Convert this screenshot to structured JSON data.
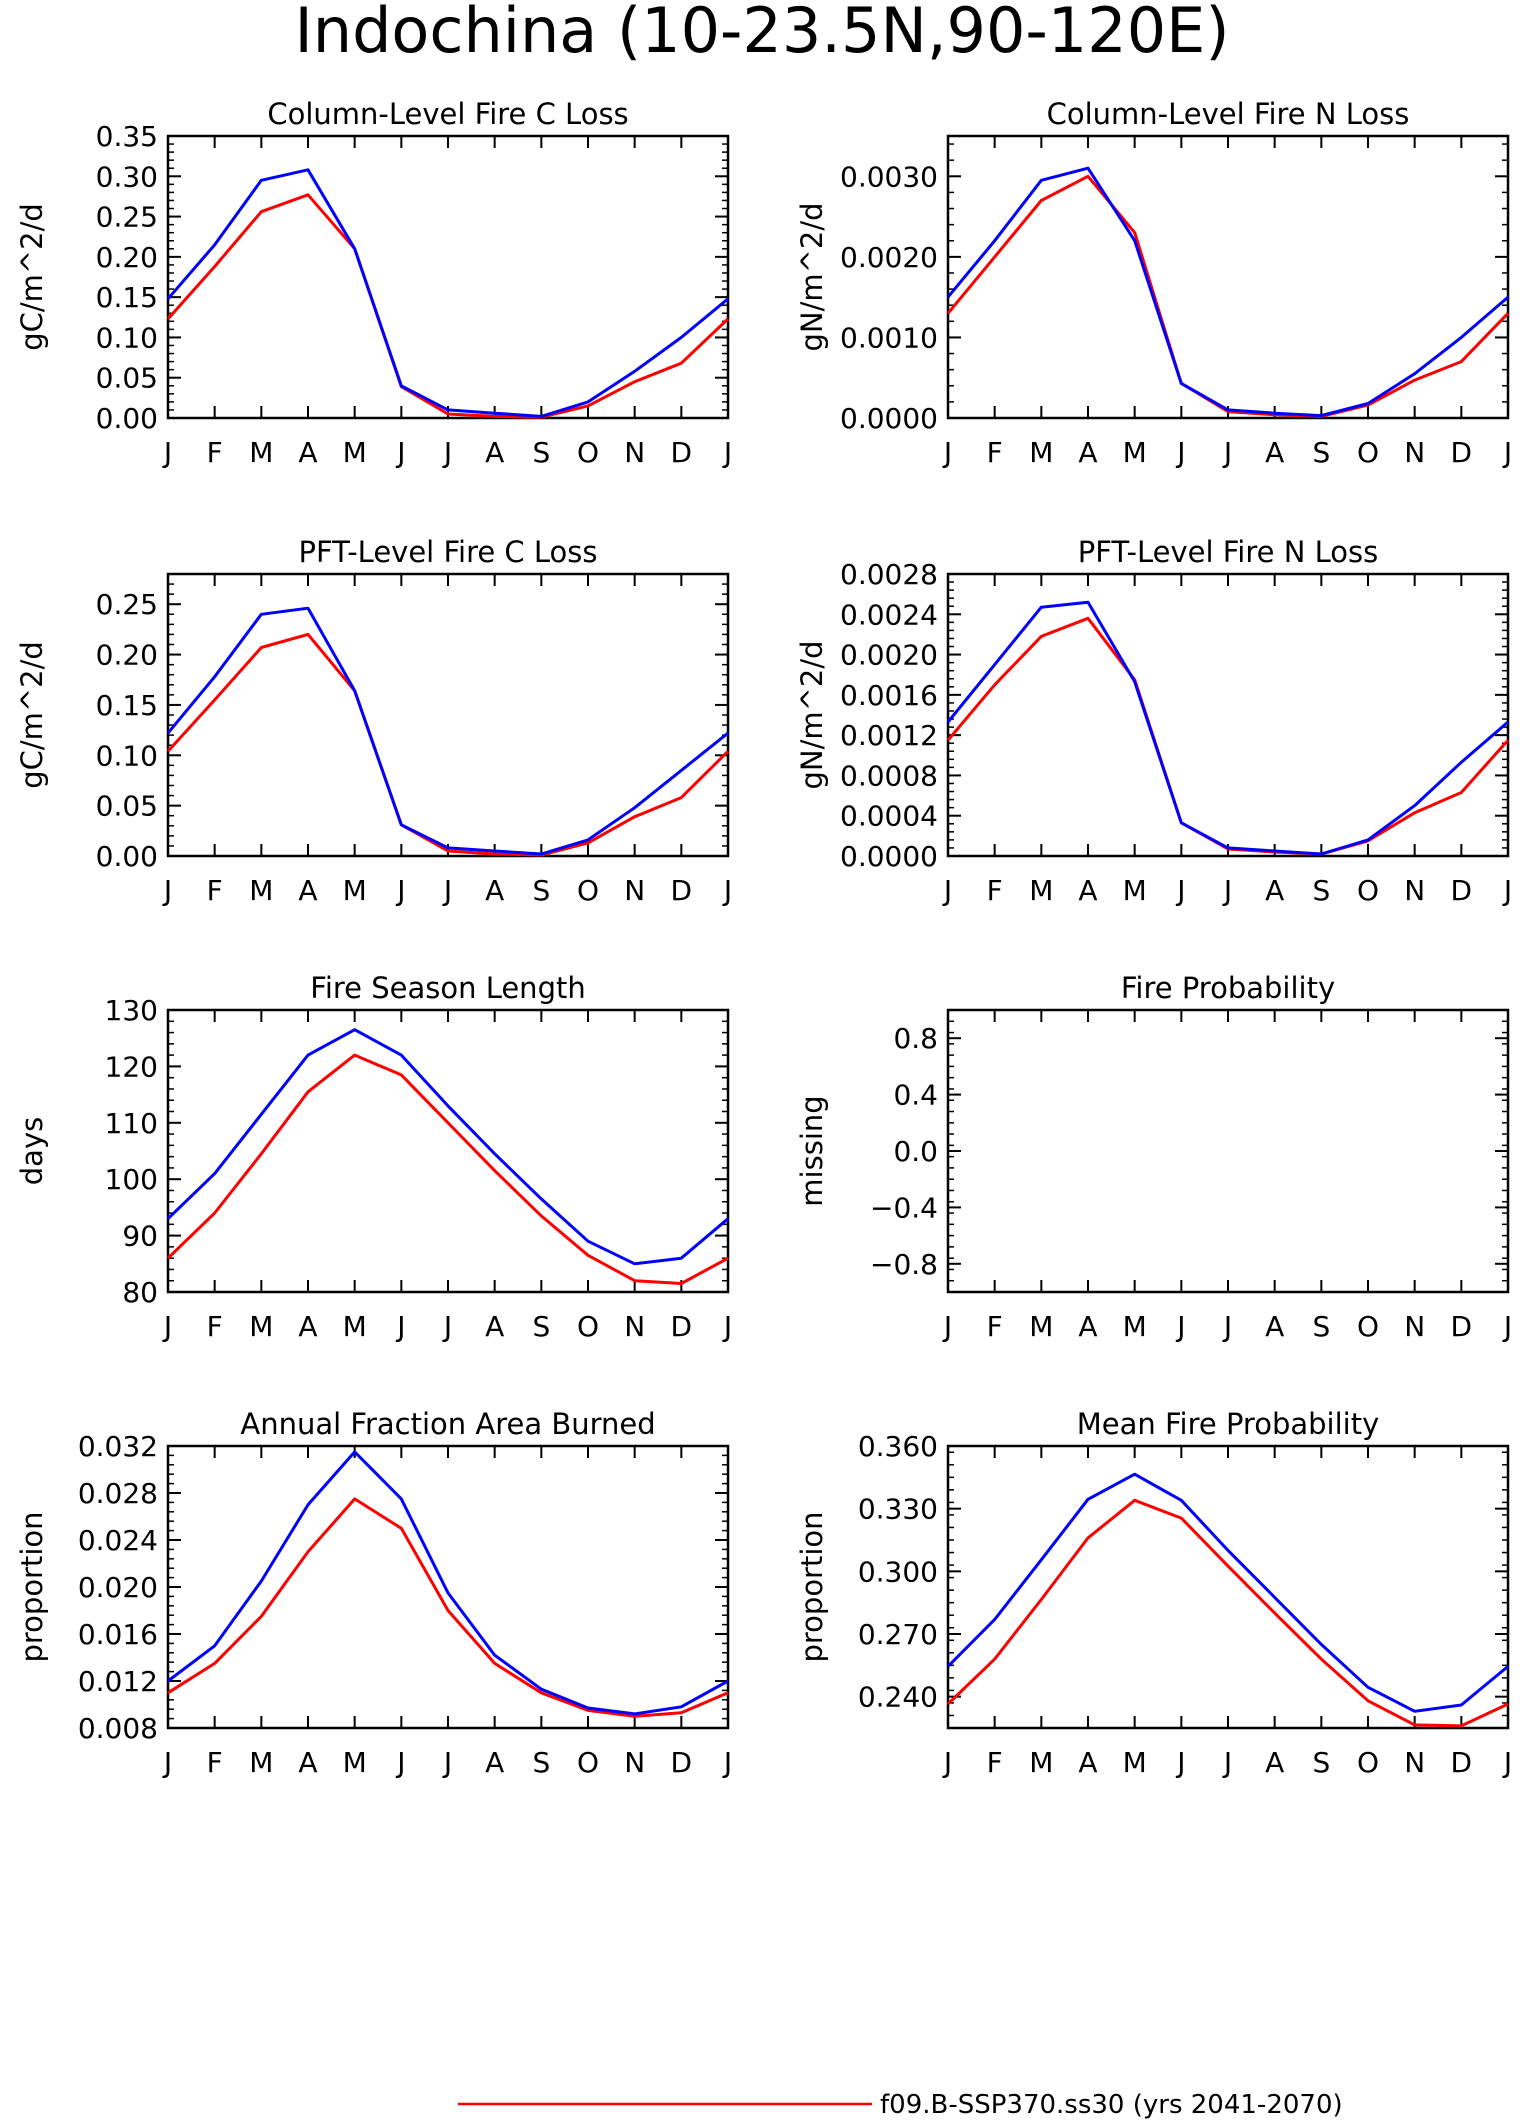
{
  "title": "Indochina (10-23.5N,90-120E)",
  "month_labels": [
    "J",
    "F",
    "M",
    "A",
    "M",
    "J",
    "J",
    "A",
    "S",
    "O",
    "N",
    "D",
    "J"
  ],
  "colors": {
    "series_1": "#ff0000",
    "series_2": "#0000ff",
    "axes": "#000000"
  },
  "legend": {
    "series_1": "f09.B-SSP370.ss30 (yrs 2041-2070)"
  },
  "chart_data": [
    {
      "type": "line",
      "title": "Column-Level Fire C Loss",
      "ylabel": "gC/m^2/d",
      "ylim": [
        0,
        0.35
      ],
      "yticks": [
        "0.00",
        "0.05",
        "0.10",
        "0.15",
        "0.20",
        "0.25",
        "0.30",
        "0.35"
      ],
      "series": [
        {
          "values": [
            0.123,
            0.188,
            0.256,
            0.277,
            0.21,
            0.039,
            0.005,
            0.002,
            0.001,
            0.015,
            0.045,
            0.068,
            0.123
          ]
        },
        {
          "values": [
            0.148,
            0.215,
            0.295,
            0.308,
            0.21,
            0.04,
            0.01,
            0.006,
            0.002,
            0.02,
            0.058,
            0.1,
            0.148
          ]
        }
      ]
    },
    {
      "type": "line",
      "title": "Column-Level Fire N Loss",
      "ylabel": "gN/m^2/d",
      "ylim": [
        0,
        0.0035
      ],
      "yticks": [
        "0.0000",
        "0.0010",
        "0.0020",
        "0.0030"
      ],
      "series": [
        {
          "values": [
            0.0013,
            0.002,
            0.0027,
            0.003,
            0.0023,
            0.00043,
            8e-05,
            4e-05,
            2e-05,
            0.00016,
            0.00047,
            0.0007,
            0.0013
          ]
        },
        {
          "values": [
            0.0015,
            0.0022,
            0.00295,
            0.0031,
            0.0022,
            0.00043,
            0.0001,
            6e-05,
            3e-05,
            0.00018,
            0.00055,
            0.001,
            0.0015
          ]
        }
      ]
    },
    {
      "type": "line",
      "title": "PFT-Level Fire C Loss",
      "ylabel": "gC/m^2/d",
      "ylim": [
        0,
        0.28
      ],
      "yticks": [
        "0.00",
        "0.05",
        "0.10",
        "0.15",
        "0.20",
        "0.25"
      ],
      "series": [
        {
          "values": [
            0.104,
            0.155,
            0.207,
            0.22,
            0.164,
            0.031,
            0.005,
            0.002,
            0.001,
            0.013,
            0.039,
            0.058,
            0.104
          ]
        },
        {
          "values": [
            0.122,
            0.178,
            0.24,
            0.246,
            0.164,
            0.031,
            0.008,
            0.005,
            0.002,
            0.016,
            0.048,
            0.085,
            0.122
          ]
        }
      ]
    },
    {
      "type": "line",
      "title": "PFT-Level Fire N Loss",
      "ylabel": "gN/m^2/d",
      "ylim": [
        0,
        0.0028
      ],
      "yticks": [
        "0.0000",
        "0.0004",
        "0.0008",
        "0.0012",
        "0.0016",
        "0.0020",
        "0.0024",
        "0.0028"
      ],
      "series": [
        {
          "values": [
            0.00115,
            0.0017,
            0.00218,
            0.00236,
            0.00175,
            0.00033,
            7e-05,
            4e-05,
            2e-05,
            0.00015,
            0.00043,
            0.00063,
            0.00115
          ]
        },
        {
          "values": [
            0.00133,
            0.0019,
            0.00247,
            0.00252,
            0.00173,
            0.00033,
            8e-05,
            5e-05,
            2e-05,
            0.00016,
            0.0005,
            0.00093,
            0.00133
          ]
        }
      ]
    },
    {
      "type": "line",
      "title": "Fire Season Length",
      "ylabel": "days",
      "ylim": [
        80,
        130
      ],
      "yticks": [
        "80",
        "90",
        "100",
        "110",
        "120",
        "130"
      ],
      "series": [
        {
          "values": [
            86,
            94,
            104.5,
            115.5,
            122,
            118.5,
            110,
            101.5,
            93.5,
            86.5,
            82,
            81.5,
            86
          ]
        },
        {
          "values": [
            93,
            101,
            111.5,
            122,
            126.5,
            122,
            113,
            104.5,
            96.5,
            89,
            85,
            86,
            93
          ]
        }
      ]
    },
    {
      "type": "line",
      "title": "Fire Probability",
      "ylabel": "missing",
      "ylim": [
        -1.0,
        1.0
      ],
      "yticks": [
        "-0.8",
        "-0.4",
        "0.0",
        "0.4",
        "0.8"
      ],
      "series": []
    },
    {
      "type": "line",
      "title": "Annual Fraction Area Burned",
      "ylabel": "proportion",
      "ylim": [
        0.008,
        0.032
      ],
      "yticks": [
        "0.008",
        "0.012",
        "0.016",
        "0.020",
        "0.024",
        "0.028",
        "0.032"
      ],
      "series": [
        {
          "values": [
            0.011,
            0.0135,
            0.0175,
            0.023,
            0.0275,
            0.025,
            0.018,
            0.0135,
            0.011,
            0.0095,
            0.009,
            0.0093,
            0.011
          ]
        },
        {
          "values": [
            0.012,
            0.015,
            0.0205,
            0.027,
            0.0315,
            0.0275,
            0.0195,
            0.0142,
            0.0113,
            0.0097,
            0.0092,
            0.0098,
            0.012
          ]
        }
      ]
    },
    {
      "type": "line",
      "title": "Mean Fire Probability",
      "ylabel": "proportion",
      "ylim": [
        0.225,
        0.36
      ],
      "yticks": [
        "0.240",
        "0.270",
        "0.300",
        "0.330",
        "0.360"
      ],
      "series": [
        {
          "values": [
            0.2365,
            0.258,
            0.2865,
            0.316,
            0.334,
            0.3255,
            0.3025,
            0.28,
            0.258,
            0.238,
            0.2265,
            0.226,
            0.2365
          ]
        },
        {
          "values": [
            0.2545,
            0.277,
            0.3055,
            0.3345,
            0.3465,
            0.334,
            0.31,
            0.2875,
            0.265,
            0.2445,
            0.233,
            0.236,
            0.2545
          ]
        }
      ]
    }
  ]
}
